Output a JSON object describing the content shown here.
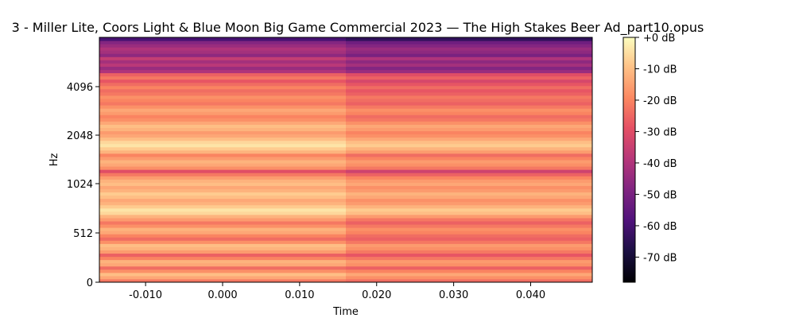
{
  "chart_data": {
    "type": "heatmap",
    "title": "3 - Miller Lite, Coors Light & Blue Moon Big Game Commercial 2023 — The High Stakes Beer Ad_part10.opus",
    "xlabel": "Time",
    "ylabel": "Hz",
    "xlim": [
      -0.016,
      0.048
    ],
    "x_ticks": [
      -0.01,
      0.0,
      0.01,
      0.02,
      0.03,
      0.04
    ],
    "x_tick_labels": [
      "-0.010",
      "0.000",
      "0.010",
      "0.020",
      "0.030",
      "0.040"
    ],
    "y_scale": "log2",
    "y_ticks": [
      0,
      512,
      1024,
      2048,
      4096
    ],
    "y_tick_labels": [
      "0",
      "512",
      "1024",
      "2048",
      "4096"
    ],
    "frame_boundaries": [
      -0.016,
      0.016,
      0.048
    ],
    "frames": [
      {
        "t_start": -0.016,
        "t_end": 0.016
      },
      {
        "t_start": 0.016,
        "t_end": 0.048
      }
    ],
    "colorbar": {
      "colormap": "magma",
      "range_db": [
        -78,
        0
      ],
      "ticks": [
        0,
        -10,
        -20,
        -30,
        -40,
        -50,
        -60,
        -70
      ],
      "tick_labels": [
        "+0 dB",
        "-10 dB",
        "-20 dB",
        "-30 dB",
        "-40 dB",
        "-50 dB",
        "-60 dB",
        "-70 dB"
      ]
    },
    "band_levels_db": {
      "frame_1": [
        -22,
        -14,
        -10,
        -18,
        -24,
        -14,
        -12,
        -20,
        -26,
        -16,
        -12,
        -10,
        -18,
        -24,
        -20,
        -14,
        -12,
        -18,
        -22,
        -16,
        -12,
        -6,
        -4,
        -8,
        -12,
        -14,
        -10,
        -8,
        -12,
        -14,
        -10,
        -12,
        -16,
        -22,
        -30,
        -18,
        -14,
        -12,
        -16,
        -20,
        -12,
        -8,
        -4,
        -6,
        -10,
        -14,
        -16,
        -12,
        -10,
        -14,
        -18,
        -20,
        -16,
        -14,
        -18,
        -22,
        -20,
        -18,
        -22,
        -24,
        -20,
        -24,
        -28,
        -22,
        -26,
        -40,
        -44,
        -38,
        -42,
        -36,
        -46,
        -42,
        -40,
        -44,
        -48,
        -60
      ],
      "frame_2": [
        -24,
        -18,
        -14,
        -20,
        -26,
        -18,
        -16,
        -22,
        -28,
        -22,
        -18,
        -16,
        -22,
        -26,
        -24,
        -20,
        -18,
        -22,
        -26,
        -22,
        -16,
        -10,
        -8,
        -12,
        -16,
        -18,
        -14,
        -12,
        -16,
        -18,
        -14,
        -16,
        -20,
        -26,
        -34,
        -22,
        -18,
        -16,
        -20,
        -24,
        -16,
        -12,
        -8,
        -10,
        -14,
        -18,
        -20,
        -16,
        -14,
        -18,
        -22,
        -24,
        -20,
        -18,
        -22,
        -26,
        -24,
        -22,
        -26,
        -28,
        -24,
        -28,
        -32,
        -26,
        -30,
        -44,
        -48,
        -42,
        -46,
        -40,
        -50,
        -46,
        -44,
        -48,
        -52,
        -64
      ]
    }
  }
}
